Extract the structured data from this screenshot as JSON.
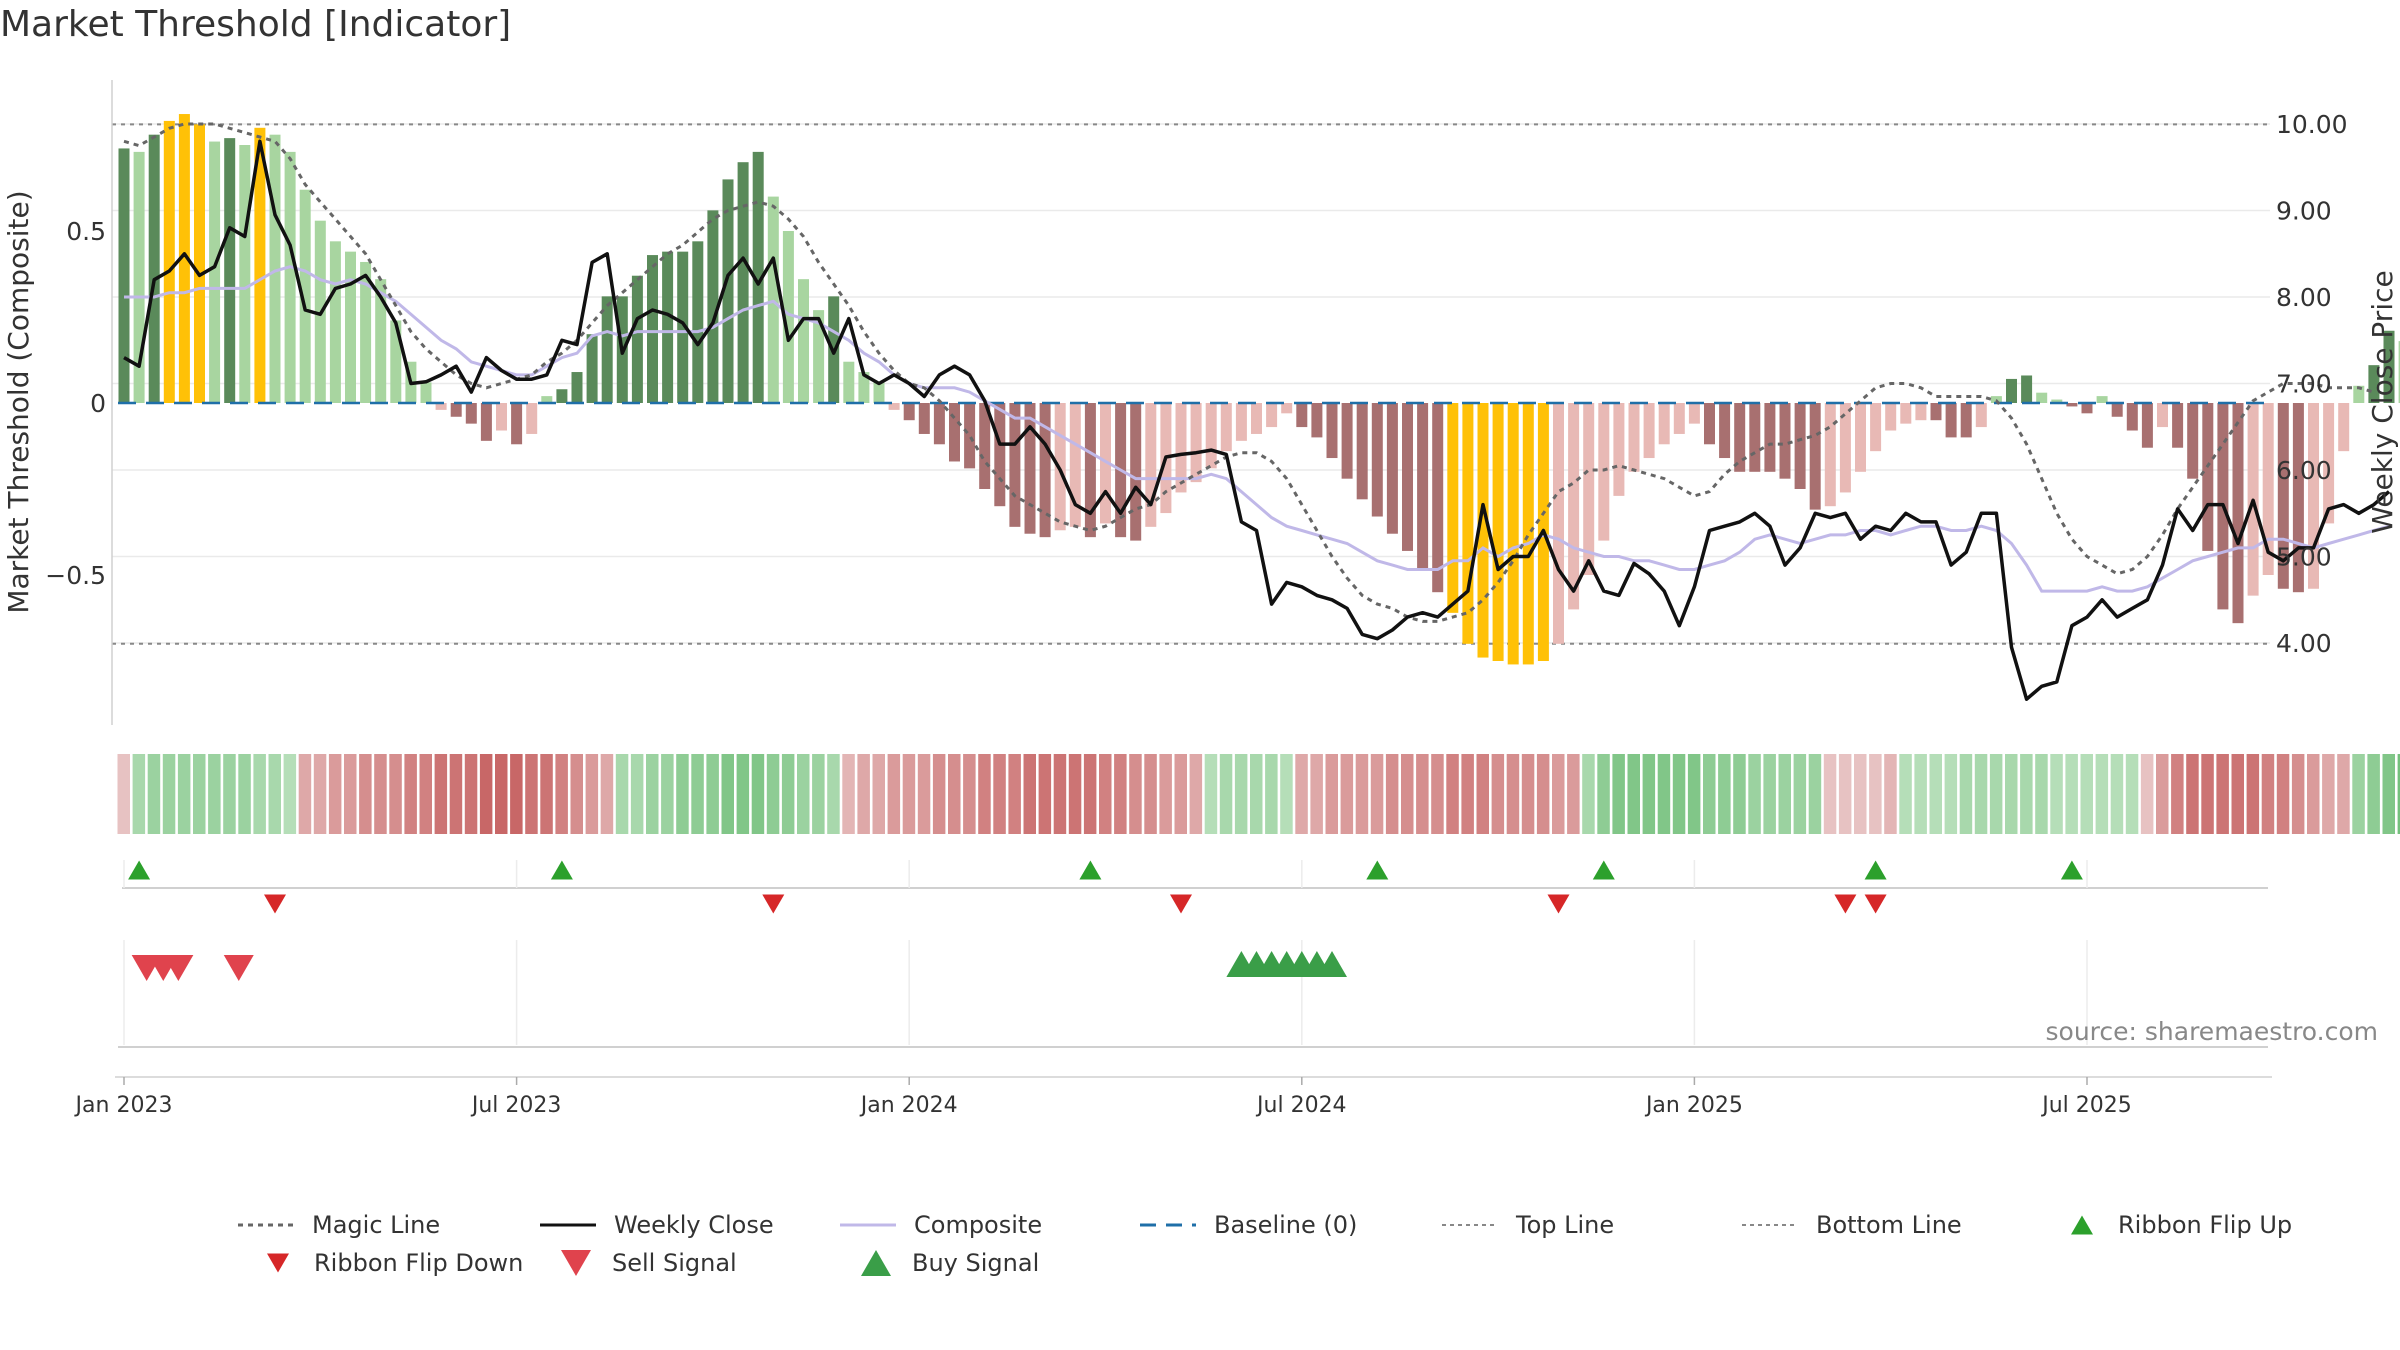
{
  "title": "Market Threshold [Indicator]",
  "source_note": "source: sharemaestro.com",
  "colors": {
    "buy": "#2ca02c",
    "sell": "#d62728",
    "extreme": "#ffc107",
    "pos_strong": "#5a8a5a",
    "pos_weak": "#a8d5a0",
    "neg_strong": "#a87070",
    "neg_weak": "#e8b9b5",
    "weekly_close": "#111111",
    "composite": "#c0b8e8",
    "magic": "#666666",
    "baseline": "#1f6fa8",
    "ref_lines": "#888888"
  },
  "chart_data": {
    "type": "bar",
    "ylabel_left": "Market Threshold (Composite)",
    "ylabel_right": "Weekly Close Price",
    "left_ticks": [
      "0.5",
      "0",
      "−0.5"
    ],
    "left_tick_values": [
      0.5,
      0,
      -0.5
    ],
    "right_ticks": [
      "10.00",
      "9.00",
      "8.00",
      "7.00",
      "6.00",
      "5.00",
      "4.00"
    ],
    "right_tick_values": [
      10,
      9,
      8,
      7,
      6,
      5,
      4
    ],
    "x_ticks": [
      "Jan 2023",
      "Jul 2023",
      "Jan 2024",
      "Jul 2024",
      "Jan 2025",
      "Jul 2025"
    ],
    "x_tick_weeks": [
      0,
      26,
      52,
      78,
      104,
      130
    ],
    "ylim_left": [
      -0.95,
      0.95
    ],
    "ylim_right": [
      3.3,
      10.75
    ],
    "top_line": 0.81,
    "bottom_line": -0.7,
    "bars": [
      0.74,
      0.73,
      0.78,
      0.82,
      0.84,
      0.81,
      0.76,
      0.77,
      0.75,
      0.8,
      0.78,
      0.73,
      0.62,
      0.53,
      0.47,
      0.44,
      0.41,
      0.36,
      0.24,
      0.12,
      0.06,
      -0.02,
      -0.04,
      -0.06,
      -0.11,
      -0.08,
      -0.12,
      -0.09,
      0.02,
      0.04,
      0.09,
      0.2,
      0.31,
      0.31,
      0.37,
      0.43,
      0.44,
      0.44,
      0.47,
      0.56,
      0.65,
      0.7,
      0.73,
      0.6,
      0.5,
      0.36,
      0.27,
      0.31,
      0.12,
      0.09,
      0.06,
      -0.02,
      -0.05,
      -0.09,
      -0.12,
      -0.17,
      -0.19,
      -0.25,
      -0.3,
      -0.36,
      -0.38,
      -0.39,
      -0.37,
      -0.36,
      -0.39,
      -0.35,
      -0.39,
      -0.4,
      -0.36,
      -0.32,
      -0.26,
      -0.23,
      -0.19,
      -0.14,
      -0.11,
      -0.09,
      -0.07,
      -0.03,
      -0.07,
      -0.1,
      -0.16,
      -0.22,
      -0.28,
      -0.33,
      -0.38,
      -0.43,
      -0.48,
      -0.55,
      -0.61,
      -0.7,
      -0.74,
      -0.75,
      -0.76,
      -0.76,
      -0.75,
      -0.7,
      -0.6,
      -0.5,
      -0.4,
      -0.27,
      -0.2,
      -0.16,
      -0.12,
      -0.09,
      -0.06,
      -0.12,
      -0.16,
      -0.2,
      -0.2,
      -0.2,
      -0.22,
      -0.25,
      -0.31,
      -0.3,
      -0.26,
      -0.2,
      -0.14,
      -0.08,
      -0.06,
      -0.05,
      -0.05,
      -0.1,
      -0.1,
      -0.07,
      0.02,
      0.07,
      0.08,
      0.03,
      0.01,
      -0.01,
      -0.03,
      0.02,
      -0.04,
      -0.08,
      -0.13,
      -0.07,
      -0.13,
      -0.22,
      -0.43,
      -0.6,
      -0.64,
      -0.56,
      -0.5,
      -0.54,
      -0.55,
      -0.54,
      -0.35,
      -0.14,
      0.05,
      0.11,
      0.21,
      0.18,
      0.05,
      -0.04,
      0.01,
      0.03,
      0.02,
      0.01,
      0.01,
      -0.02
    ],
    "extreme_weeks": [
      3,
      4,
      5,
      9,
      88,
      89,
      90,
      91,
      92,
      93,
      94
    ],
    "weekly_close": [
      7.3,
      7.2,
      8.2,
      8.3,
      8.5,
      8.25,
      8.35,
      8.8,
      8.7,
      9.8,
      8.95,
      8.6,
      7.85,
      7.8,
      8.1,
      8.15,
      8.25,
      8.0,
      7.7,
      7.0,
      7.02,
      7.1,
      7.2,
      6.9,
      7.3,
      7.15,
      7.05,
      7.05,
      7.1,
      7.5,
      7.45,
      8.4,
      8.5,
      7.35,
      7.75,
      7.85,
      7.8,
      7.7,
      7.45,
      7.7,
      8.25,
      8.45,
      8.15,
      8.45,
      7.5,
      7.75,
      7.75,
      7.35,
      7.75,
      7.1,
      7.0,
      7.1,
      7.0,
      6.85,
      7.1,
      7.2,
      7.1,
      6.8,
      6.3,
      6.3,
      6.5,
      6.3,
      6.0,
      5.6,
      5.5,
      5.75,
      5.5,
      5.8,
      5.6,
      6.15,
      6.18,
      6.2,
      6.23,
      6.18,
      5.4,
      5.3,
      4.45,
      4.7,
      4.65,
      4.55,
      4.5,
      4.4,
      4.1,
      4.05,
      4.15,
      4.3,
      4.35,
      4.3,
      4.45,
      4.6,
      5.6,
      4.85,
      5.0,
      5.0,
      5.3,
      4.85,
      4.6,
      4.95,
      4.6,
      4.55,
      4.92,
      4.8,
      4.6,
      4.2,
      4.65,
      5.3,
      5.35,
      5.4,
      5.5,
      5.35,
      4.9,
      5.1,
      5.5,
      5.45,
      5.5,
      5.2,
      5.35,
      5.3,
      5.5,
      5.4,
      5.4,
      4.9,
      5.05,
      5.5,
      5.5,
      3.95,
      3.35,
      3.5,
      3.55,
      4.2,
      4.3,
      4.5,
      4.3,
      4.4,
      4.5,
      4.9,
      5.55,
      5.3,
      5.6,
      5.6,
      5.15,
      5.65,
      5.05,
      4.95,
      5.1,
      5.1,
      5.55,
      5.6,
      5.5,
      5.6,
      5.75
    ],
    "composite": [
      8.0,
      8.0,
      8.0,
      8.05,
      8.05,
      8.1,
      8.1,
      8.1,
      8.1,
      8.2,
      8.3,
      8.35,
      8.3,
      8.2,
      8.15,
      8.2,
      8.15,
      8.05,
      7.95,
      7.8,
      7.65,
      7.5,
      7.4,
      7.25,
      7.2,
      7.15,
      7.1,
      7.1,
      7.2,
      7.3,
      7.35,
      7.55,
      7.6,
      7.55,
      7.6,
      7.6,
      7.6,
      7.6,
      7.6,
      7.65,
      7.75,
      7.85,
      7.9,
      7.95,
      7.8,
      7.75,
      7.7,
      7.6,
      7.5,
      7.35,
      7.25,
      7.1,
      7.0,
      6.95,
      6.95,
      6.95,
      6.9,
      6.8,
      6.7,
      6.6,
      6.6,
      6.5,
      6.4,
      6.3,
      6.2,
      6.1,
      6.0,
      5.9,
      5.9,
      5.9,
      5.9,
      5.9,
      5.95,
      5.9,
      5.75,
      5.6,
      5.45,
      5.35,
      5.3,
      5.25,
      5.2,
      5.15,
      5.05,
      4.95,
      4.9,
      4.85,
      4.85,
      4.85,
      4.95,
      4.95,
      5.1,
      5.0,
      5.1,
      5.15,
      5.25,
      5.2,
      5.1,
      5.05,
      5.0,
      5.0,
      4.95,
      4.95,
      4.9,
      4.85,
      4.85,
      4.9,
      4.95,
      5.05,
      5.2,
      5.25,
      5.2,
      5.15,
      5.2,
      5.25,
      5.25,
      5.3,
      5.3,
      5.25,
      5.3,
      5.35,
      5.35,
      5.3,
      5.3,
      5.35,
      5.3,
      5.15,
      4.9,
      4.6,
      4.6,
      4.6,
      4.6,
      4.65,
      4.6,
      4.6,
      4.65,
      4.75,
      4.85,
      4.95,
      5.0,
      5.05,
      5.1,
      5.1,
      5.2,
      5.2,
      5.15,
      5.1,
      5.15,
      5.2,
      5.25,
      5.3,
      5.35
    ],
    "magic_line": [
      9.8,
      9.75,
      9.85,
      9.95,
      10.0,
      10.0,
      10.0,
      9.95,
      9.9,
      9.85,
      9.8,
      9.6,
      9.3,
      9.1,
      8.9,
      8.7,
      8.5,
      8.2,
      7.9,
      7.6,
      7.4,
      7.25,
      7.1,
      7.0,
      6.95,
      7.0,
      7.05,
      7.1,
      7.25,
      7.35,
      7.5,
      7.7,
      7.9,
      8.05,
      8.2,
      8.35,
      8.5,
      8.6,
      8.75,
      8.9,
      9.0,
      9.05,
      9.1,
      9.05,
      8.9,
      8.7,
      8.4,
      8.15,
      7.9,
      7.6,
      7.35,
      7.15,
      7.0,
      6.95,
      6.8,
      6.6,
      6.4,
      6.1,
      5.9,
      5.7,
      5.6,
      5.5,
      5.4,
      5.35,
      5.3,
      5.35,
      5.45,
      5.55,
      5.6,
      5.75,
      5.85,
      5.95,
      6.05,
      6.15,
      6.2,
      6.2,
      6.1,
      5.9,
      5.6,
      5.3,
      5.0,
      4.75,
      4.55,
      4.45,
      4.4,
      4.3,
      4.25,
      4.25,
      4.3,
      4.35,
      4.5,
      4.7,
      4.95,
      5.25,
      5.5,
      5.75,
      5.85,
      6.0,
      6.0,
      6.05,
      6.0,
      5.95,
      5.9,
      5.8,
      5.7,
      5.75,
      5.95,
      6.1,
      6.2,
      6.3,
      6.3,
      6.35,
      6.4,
      6.5,
      6.65,
      6.8,
      6.95,
      7.0,
      7.0,
      6.95,
      6.85,
      6.85,
      6.85,
      6.85,
      6.8,
      6.6,
      6.3,
      5.9,
      5.5,
      5.2,
      5.0,
      4.9,
      4.8,
      4.85,
      5.0,
      5.25,
      5.55,
      5.8,
      6.05,
      6.3,
      6.55,
      6.8,
      6.9,
      7.0,
      7.0,
      7.0,
      6.95,
      6.95,
      6.95,
      6.9
    ],
    "ribbon": [
      -0.2,
      0.4,
      0.5,
      0.5,
      0.5,
      0.5,
      0.5,
      0.5,
      0.5,
      0.4,
      0.4,
      0.3,
      -0.4,
      -0.4,
      -0.5,
      -0.5,
      -0.6,
      -0.6,
      -0.6,
      -0.7,
      -0.7,
      -0.8,
      -0.8,
      -0.8,
      -0.9,
      -0.9,
      -0.9,
      -0.8,
      -0.8,
      -0.7,
      -0.6,
      -0.5,
      -0.4,
      0.4,
      0.4,
      0.5,
      0.5,
      0.6,
      0.6,
      0.6,
      0.7,
      0.7,
      0.7,
      0.6,
      0.6,
      0.5,
      0.5,
      0.4,
      -0.3,
      -0.4,
      -0.4,
      -0.5,
      -0.5,
      -0.5,
      -0.6,
      -0.6,
      -0.6,
      -0.7,
      -0.7,
      -0.7,
      -0.8,
      -0.8,
      -0.8,
      -0.8,
      -0.8,
      -0.7,
      -0.7,
      -0.6,
      -0.6,
      -0.5,
      -0.5,
      -0.4,
      0.3,
      0.4,
      0.4,
      0.4,
      0.4,
      0.3,
      -0.4,
      -0.4,
      -0.5,
      -0.5,
      -0.5,
      -0.5,
      -0.6,
      -0.6,
      -0.6,
      -0.6,
      -0.7,
      -0.7,
      -0.7,
      -0.6,
      -0.6,
      -0.6,
      -0.6,
      -0.5,
      -0.5,
      0.4,
      0.6,
      0.7,
      0.7,
      0.7,
      0.7,
      0.7,
      0.7,
      0.6,
      0.6,
      0.6,
      0.5,
      0.5,
      0.5,
      0.5,
      0.5,
      -0.2,
      -0.2,
      -0.2,
      -0.2,
      -0.3,
      0.3,
      0.3,
      0.3,
      0.3,
      0.4,
      0.4,
      0.4,
      0.4,
      0.4,
      0.4,
      0.3,
      0.3,
      0.3,
      0.3,
      0.3,
      0.3,
      -0.2,
      -0.5,
      -0.7,
      -0.8,
      -0.8,
      -0.8,
      -0.8,
      -0.8,
      -0.7,
      -0.7,
      -0.6,
      -0.5,
      -0.4,
      -0.4,
      0.5,
      0.6,
      0.7,
      0.8,
      0.8,
      0.8,
      0.7,
      0.7,
      0.6,
      0.5,
      0.5,
      0.5,
      0.4,
      0.4
    ],
    "ribbon_flip_up_weeks": [
      1,
      29,
      64,
      83,
      98,
      116,
      129
    ],
    "ribbon_flip_down_weeks": [
      10,
      43,
      70,
      95,
      114,
      116
    ],
    "sell_signal_weeks": [
      1.5,
      2.6,
      3.6,
      7.6
    ],
    "buy_signal_weeks": [
      74,
      75,
      76,
      77,
      78,
      79,
      80
    ],
    "legend": [
      {
        "label": "Magic Line",
        "kind": "dotted"
      },
      {
        "label": "Weekly Close",
        "kind": "line"
      },
      {
        "label": "Composite",
        "kind": "composite"
      },
      {
        "label": "Baseline (0)",
        "kind": "dashed"
      },
      {
        "label": "Top Line",
        "kind": "refdotted"
      },
      {
        "label": "Bottom Line",
        "kind": "refdotted"
      },
      {
        "label": "Ribbon Flip Up",
        "kind": "tri-up-small"
      },
      {
        "label": "Ribbon Flip Down",
        "kind": "tri-down-small"
      },
      {
        "label": "Sell Signal",
        "kind": "tri-down-big"
      },
      {
        "label": "Buy Signal",
        "kind": "tri-up-big"
      }
    ]
  }
}
